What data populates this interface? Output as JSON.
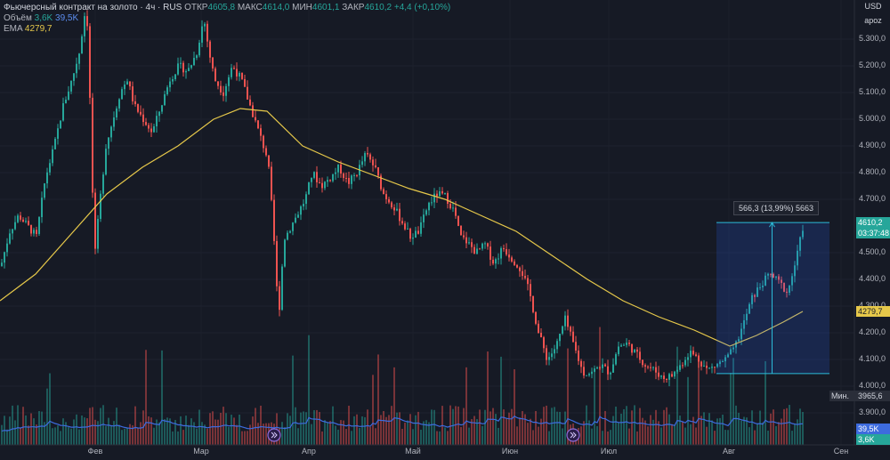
{
  "legend": {
    "symbol": "Фьючерсный контракт на золото · 4ч · RUS",
    "open_label": "ОТКР",
    "open": "4605,8",
    "high_label": "МАКС",
    "high": "4614,0",
    "low_label": "МИН",
    "low": "4601,1",
    "close_label": "ЗАКР",
    "close": "4610,2",
    "change": "+4,4 (+0,10%)",
    "volume_label": "Объём",
    "volume1": "3,6K",
    "volume2": "39,5K",
    "ema_label": "EMA",
    "ema": "4279,7"
  },
  "top_right": {
    "currency": "USD",
    "user": "apoz"
  },
  "tags": {
    "price": "4610,2",
    "countdown": "03:37:48",
    "ema": "4279,7",
    "min_label": "Мин.",
    "min_value": "3965,6",
    "vol_avg": "39,5K",
    "vol": "3,6K"
  },
  "measure": {
    "label": "566,3 (13,99%) 5663"
  },
  "colors": {
    "up": "#26a69a",
    "down": "#ef5350",
    "ema": "#e6c84a",
    "vol_ma": "#3d6bde",
    "bg": "#161a25"
  },
  "chart_data": {
    "type": "candlestick",
    "ylim": [
      3880,
      5400
    ],
    "y_ticks": [
      "5.300,0",
      "5.200,0",
      "5.100,0",
      "5.000,0",
      "4.900,0",
      "4.800,0",
      "4.700,0",
      "4.500,0",
      "4.400,0",
      "4.300,0",
      "4.200,0",
      "4.100,0",
      "4.000,0",
      "3.900,0"
    ],
    "y_tick_values": [
      5300,
      5200,
      5100,
      5000,
      4900,
      4800,
      4700,
      4500,
      4400,
      4300,
      4200,
      4100,
      4000,
      3900
    ],
    "x_ticks": [
      "Фев",
      "Мар",
      "Апр",
      "Май",
      "Июн",
      "Июл",
      "Авг",
      "Сен"
    ],
    "price_path": [
      [
        0,
        4450
      ],
      [
        10,
        4580
      ],
      [
        20,
        4640
      ],
      [
        30,
        4600
      ],
      [
        40,
        4560
      ],
      [
        50,
        4780
      ],
      [
        60,
        4900
      ],
      [
        70,
        5050
      ],
      [
        80,
        5150
      ],
      [
        88,
        5250
      ],
      [
        94,
        5390
      ],
      [
        98,
        5350
      ],
      [
        102,
        4800
      ],
      [
        106,
        4500
      ],
      [
        110,
        4650
      ],
      [
        118,
        4900
      ],
      [
        126,
        5000
      ],
      [
        134,
        5100
      ],
      [
        142,
        5150
      ],
      [
        150,
        5050
      ],
      [
        160,
        5000
      ],
      [
        170,
        4950
      ],
      [
        180,
        5050
      ],
      [
        190,
        5150
      ],
      [
        200,
        5200
      ],
      [
        210,
        5180
      ],
      [
        220,
        5250
      ],
      [
        228,
        5380
      ],
      [
        234,
        5250
      ],
      [
        240,
        5150
      ],
      [
        250,
        5100
      ],
      [
        260,
        5200
      ],
      [
        270,
        5150
      ],
      [
        280,
        5050
      ],
      [
        290,
        4950
      ],
      [
        300,
        4850
      ],
      [
        306,
        4600
      ],
      [
        312,
        4250
      ],
      [
        318,
        4550
      ],
      [
        326,
        4600
      ],
      [
        334,
        4650
      ],
      [
        342,
        4700
      ],
      [
        350,
        4800
      ],
      [
        360,
        4750
      ],
      [
        370,
        4780
      ],
      [
        380,
        4820
      ],
      [
        390,
        4760
      ],
      [
        400,
        4800
      ],
      [
        410,
        4870
      ],
      [
        420,
        4820
      ],
      [
        430,
        4720
      ],
      [
        440,
        4680
      ],
      [
        450,
        4620
      ],
      [
        460,
        4560
      ],
      [
        470,
        4580
      ],
      [
        480,
        4680
      ],
      [
        490,
        4720
      ],
      [
        500,
        4710
      ],
      [
        510,
        4650
      ],
      [
        516,
        4560
      ],
      [
        524,
        4540
      ],
      [
        534,
        4500
      ],
      [
        544,
        4530
      ],
      [
        554,
        4460
      ],
      [
        564,
        4520
      ],
      [
        574,
        4480
      ],
      [
        584,
        4440
      ],
      [
        594,
        4350
      ],
      [
        604,
        4200
      ],
      [
        614,
        4100
      ],
      [
        624,
        4150
      ],
      [
        634,
        4250
      ],
      [
        644,
        4150
      ],
      [
        654,
        4050
      ],
      [
        664,
        4050
      ],
      [
        674,
        4080
      ],
      [
        684,
        4050
      ],
      [
        694,
        4150
      ],
      [
        704,
        4160
      ],
      [
        714,
        4120
      ],
      [
        724,
        4080
      ],
      [
        734,
        4060
      ],
      [
        744,
        4030
      ],
      [
        754,
        4040
      ],
      [
        764,
        4080
      ],
      [
        774,
        4130
      ],
      [
        784,
        4100
      ],
      [
        794,
        4060
      ],
      [
        804,
        4080
      ],
      [
        814,
        4100
      ],
      [
        824,
        4140
      ],
      [
        834,
        4230
      ],
      [
        844,
        4330
      ],
      [
        854,
        4380
      ],
      [
        864,
        4420
      ],
      [
        874,
        4390
      ],
      [
        884,
        4350
      ],
      [
        894,
        4480
      ],
      [
        902,
        4610
      ]
    ],
    "ema_path": [
      [
        0,
        4320
      ],
      [
        40,
        4420
      ],
      [
        80,
        4570
      ],
      [
        120,
        4720
      ],
      [
        160,
        4820
      ],
      [
        200,
        4900
      ],
      [
        240,
        5000
      ],
      [
        270,
        5040
      ],
      [
        300,
        5030
      ],
      [
        340,
        4900
      ],
      [
        380,
        4840
      ],
      [
        420,
        4790
      ],
      [
        460,
        4740
      ],
      [
        500,
        4700
      ],
      [
        540,
        4640
      ],
      [
        580,
        4580
      ],
      [
        620,
        4490
      ],
      [
        660,
        4400
      ],
      [
        700,
        4320
      ],
      [
        740,
        4260
      ],
      [
        780,
        4210
      ],
      [
        820,
        4150
      ],
      [
        850,
        4190
      ],
      [
        880,
        4240
      ],
      [
        902,
        4280
      ]
    ],
    "measure_range": {
      "from_x": 805,
      "to_x": 932,
      "low": 4047,
      "high": 4613
    }
  }
}
